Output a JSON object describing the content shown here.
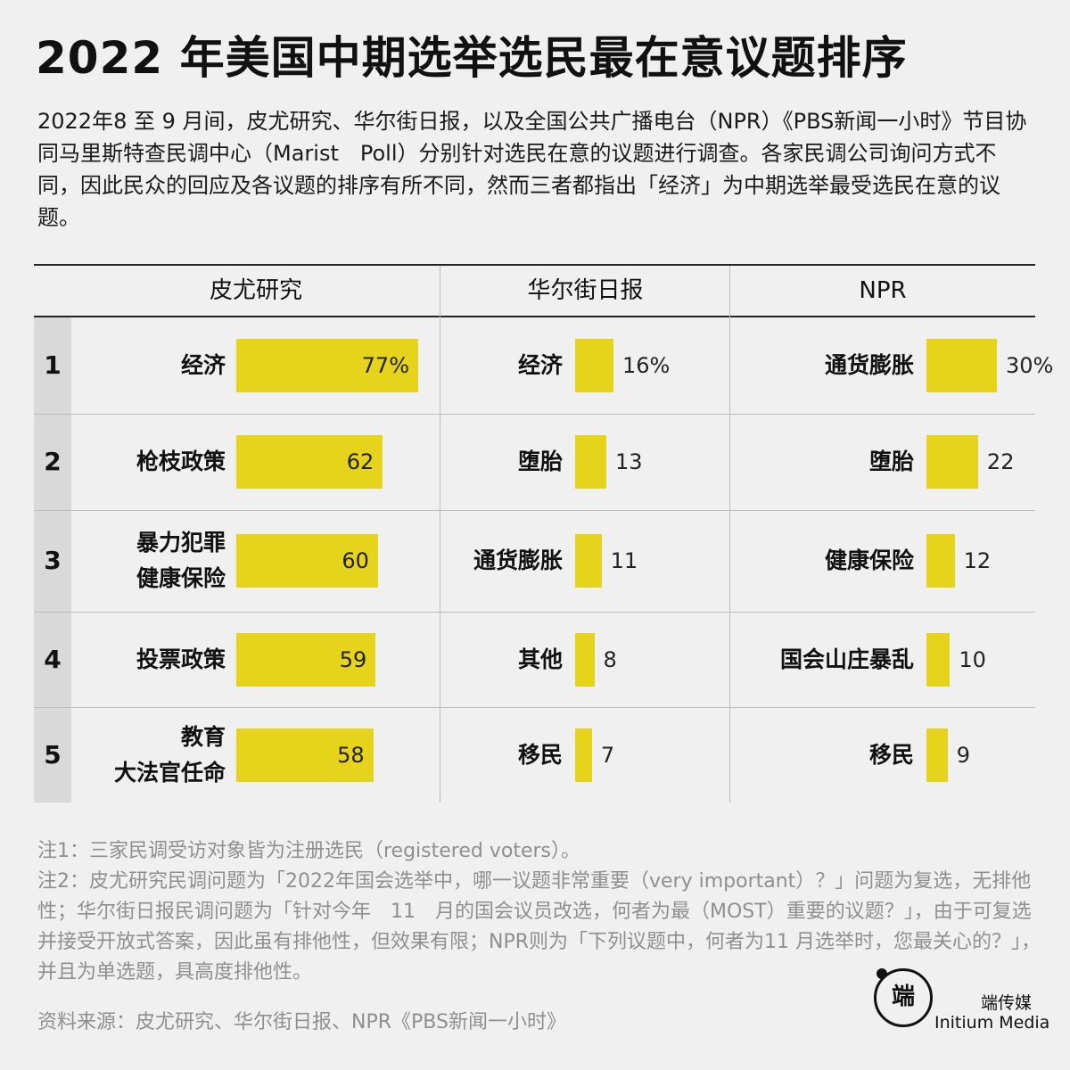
{
  "title": "2022 年美国中期选举选民最在意议题排序",
  "intro": "2022年8 至 9 月间，皮尤研究、华尔街日报，以及全国公共广播电台（NPR）《PBS新闻一小时》节目协同马里斯特查民调中心（Marist　Poll）分别针对选民在意的议题进行调查。各家民调公司询问方式不同，因此民众的回应及各议题的排序有所不同，然而三者都指出「经济」为中期选举最受选民在意的议题。",
  "chart_data": {
    "type": "bar",
    "ranks": [
      "1",
      "2",
      "3",
      "4",
      "5"
    ],
    "colors": {
      "bar": "#e5d41b",
      "rank_strip": "#d9d9d9"
    },
    "surveys": [
      {
        "name": "皮尤研究",
        "items": [
          {
            "lines": [
              "经济"
            ],
            "value": 77,
            "label": "77%"
          },
          {
            "lines": [
              "枪枝政策"
            ],
            "value": 62,
            "label": "62"
          },
          {
            "lines": [
              "暴力犯罪",
              "健康保险"
            ],
            "value": 60,
            "label": "60"
          },
          {
            "lines": [
              "投票政策"
            ],
            "value": 59,
            "label": "59"
          },
          {
            "lines": [
              "教育",
              "大法官任命"
            ],
            "value": 58,
            "label": "58"
          }
        ]
      },
      {
        "name": "华尔街日报",
        "items": [
          {
            "lines": [
              "经济"
            ],
            "value": 16,
            "label": "16%"
          },
          {
            "lines": [
              "堕胎"
            ],
            "value": 13,
            "label": "13"
          },
          {
            "lines": [
              "通货膨胀"
            ],
            "value": 11,
            "label": "11"
          },
          {
            "lines": [
              "其他"
            ],
            "value": 8,
            "label": "8"
          },
          {
            "lines": [
              "移民"
            ],
            "value": 7,
            "label": "7"
          }
        ]
      },
      {
        "name": "NPR",
        "items": [
          {
            "lines": [
              "通货膨胀"
            ],
            "value": 30,
            "label": "30%"
          },
          {
            "lines": [
              "堕胎"
            ],
            "value": 22,
            "label": "22"
          },
          {
            "lines": [
              "健康保险"
            ],
            "value": 12,
            "label": "12"
          },
          {
            "lines": [
              "国会山庄暴乱"
            ],
            "value": 10,
            "label": "10"
          },
          {
            "lines": [
              "移民"
            ],
            "value": 9,
            "label": "9"
          }
        ]
      }
    ]
  },
  "notes": [
    "注1：三家民调受访对象皆为注册选民（registered voters）。",
    "注2：皮尤研究民调问题为「2022年国会选举中，哪一议题非常重要（very important）？」问题为复选，无排他性；华尔街日报民调问题为「针对今年　11　月的国会议员改选，何者为最（MOST）重要的议题？」，由于可复选并接受开放式答案，因此虽有排他性，但效果有限；NPR则为「下列议题中，何者为11 月选举时，您最关心的？」，并且为单选题，具高度排他性。"
  ],
  "source": "资料来源：皮尤研究、华尔街日报、NPR《PBS新闻一小时》",
  "brand": {
    "logo_mark": "端",
    "name_cn": "端传媒",
    "name_en": "Initium Media"
  }
}
